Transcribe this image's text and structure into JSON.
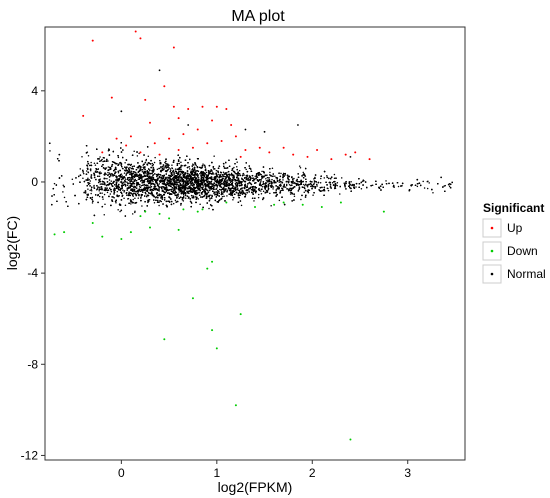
{
  "chart_data": {
    "type": "scatter",
    "title": "MA plot",
    "xlabel": "log2(FPKM)",
    "ylabel": "log2(FC)",
    "xlim": [
      -0.8,
      3.6
    ],
    "ylim": [
      -12.2,
      6.8
    ],
    "xticks": [
      0,
      1,
      2,
      3
    ],
    "yticks": [
      -12,
      -8,
      -4,
      0,
      4
    ],
    "grid": false,
    "legend": {
      "title": "Significant",
      "placement": "right",
      "entries": [
        {
          "label": "Up",
          "color": "#ff0000"
        },
        {
          "label": "Down",
          "color": "#00cc00"
        },
        {
          "label": "Normal",
          "color": "#000000"
        }
      ]
    },
    "series": [
      {
        "name": "Up",
        "color": "#ff0000",
        "points": [
          [
            -0.3,
            6.2
          ],
          [
            0.15,
            6.6
          ],
          [
            0.2,
            6.3
          ],
          [
            0.55,
            5.9
          ],
          [
            -0.4,
            2.9
          ],
          [
            -0.1,
            3.7
          ],
          [
            0.25,
            3.6
          ],
          [
            0.45,
            4.2
          ],
          [
            0.55,
            3.3
          ],
          [
            0.6,
            2.8
          ],
          [
            0.7,
            3.2
          ],
          [
            0.85,
            3.3
          ],
          [
            1.0,
            3.3
          ],
          [
            1.1,
            3.2
          ],
          [
            1.15,
            2.5
          ],
          [
            0.95,
            2.7
          ],
          [
            0.3,
            2.6
          ],
          [
            0.1,
            2.0
          ],
          [
            0.05,
            1.6
          ],
          [
            -0.05,
            1.9
          ],
          [
            0.35,
            1.7
          ],
          [
            0.5,
            1.9
          ],
          [
            0.65,
            2.1
          ],
          [
            0.75,
            1.5
          ],
          [
            0.9,
            1.7
          ],
          [
            1.05,
            1.8
          ],
          [
            1.2,
            2.0
          ],
          [
            1.3,
            1.4
          ],
          [
            1.45,
            1.5
          ],
          [
            1.55,
            1.3
          ],
          [
            1.7,
            1.5
          ],
          [
            1.8,
            1.2
          ],
          [
            1.95,
            1.1
          ],
          [
            2.05,
            1.4
          ],
          [
            2.2,
            1.0
          ],
          [
            2.35,
            1.2
          ],
          [
            2.45,
            1.3
          ],
          [
            2.6,
            1.0
          ],
          [
            0.2,
            1.3
          ],
          [
            0.4,
            1.2
          ],
          [
            0.8,
            2.3
          ],
          [
            1.25,
            1.1
          ],
          [
            -0.2,
            1.3
          ],
          [
            0.6,
            1.4
          ]
        ]
      },
      {
        "name": "Down",
        "color": "#00cc00",
        "points": [
          [
            -0.7,
            -2.3
          ],
          [
            -0.6,
            -2.2
          ],
          [
            -0.3,
            -1.8
          ],
          [
            -0.2,
            -2.4
          ],
          [
            0.0,
            -2.5
          ],
          [
            0.1,
            -2.2
          ],
          [
            0.3,
            -2.0
          ],
          [
            0.4,
            -1.4
          ],
          [
            0.5,
            -1.6
          ],
          [
            0.6,
            -2.1
          ],
          [
            0.8,
            -1.3
          ],
          [
            0.85,
            -1.2
          ],
          [
            0.9,
            -3.8
          ],
          [
            0.95,
            -3.5
          ],
          [
            0.75,
            -5.1
          ],
          [
            1.25,
            -5.8
          ],
          [
            0.95,
            -6.5
          ],
          [
            0.45,
            -6.9
          ],
          [
            1.0,
            -7.3
          ],
          [
            1.2,
            -9.8
          ],
          [
            2.4,
            -11.3
          ],
          [
            2.75,
            -1.3
          ],
          [
            1.9,
            -1.0
          ],
          [
            2.1,
            -1.1
          ],
          [
            1.4,
            -1.1
          ],
          [
            1.6,
            -1.0
          ],
          [
            0.2,
            -1.5
          ],
          [
            0.65,
            -1.2
          ],
          [
            1.1,
            -0.9
          ],
          [
            1.7,
            -0.9
          ],
          [
            2.3,
            -0.9
          ],
          [
            0.25,
            -1.3
          ]
        ]
      },
      {
        "name": "Normal",
        "color": "#000000",
        "generated_count": 7000,
        "extra_points": [
          [
            0.4,
            4.9
          ],
          [
            1.3,
            2.3
          ],
          [
            1.85,
            2.5
          ],
          [
            2.4,
            1.1
          ],
          [
            -0.75,
            1.7
          ],
          [
            -0.65,
            1.2
          ],
          [
            3.45,
            -0.1
          ],
          [
            3.35,
            0.2
          ],
          [
            3.1,
            0.1
          ],
          [
            0.0,
            3.1
          ],
          [
            0.7,
            2.5
          ],
          [
            1.5,
            2.2
          ]
        ]
      }
    ]
  }
}
